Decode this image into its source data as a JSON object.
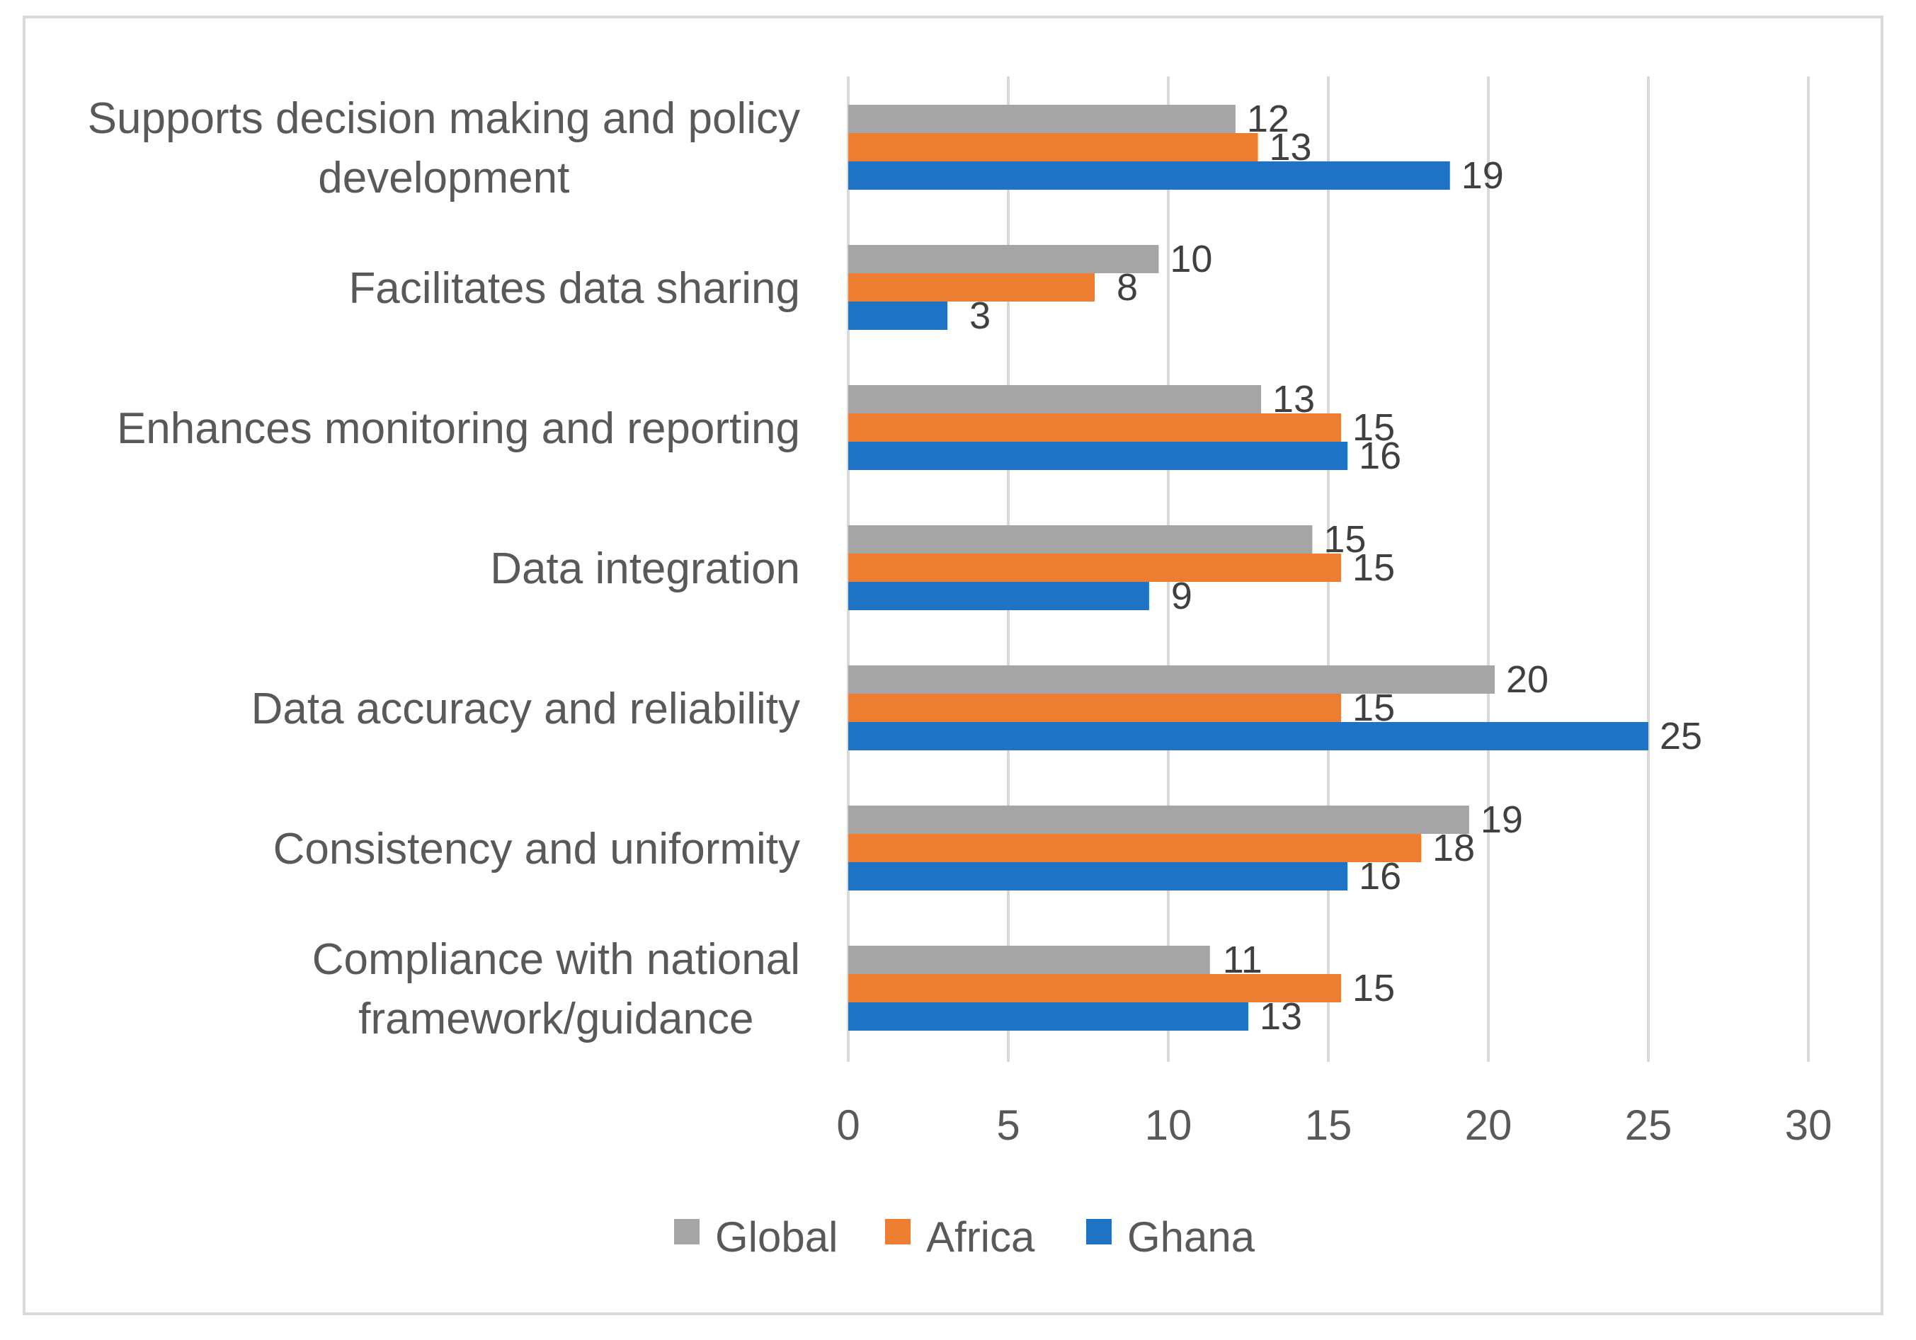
{
  "chart_data": {
    "type": "bar",
    "orientation": "horizontal",
    "title": "",
    "xlabel": "",
    "ylabel": "",
    "xlim": [
      0,
      30
    ],
    "xticks": [
      0,
      5,
      10,
      15,
      20,
      25,
      30
    ],
    "grid": true,
    "legend_position": "bottom",
    "categories": [
      [
        "Supports decision making and policy",
        "development"
      ],
      [
        "Facilitates data sharing"
      ],
      [
        "Enhances monitoring and reporting"
      ],
      [
        "Data integration"
      ],
      [
        "Data accuracy and reliability"
      ],
      [
        "Consistency and uniformity"
      ],
      [
        "Compliance with national",
        "framework/guidance"
      ]
    ],
    "series": [
      {
        "name": "Global",
        "color": "#a5a5a5",
        "values": [
          12.1,
          9.7,
          12.9,
          14.5,
          20.2,
          19.4,
          11.3
        ],
        "labels": [
          "12",
          "10",
          "13",
          "15",
          "20",
          "19",
          "11"
        ]
      },
      {
        "name": "Africa",
        "color": "#ed7d31",
        "values": [
          12.8,
          7.7,
          15.4,
          15.4,
          15.4,
          17.9,
          15.4
        ],
        "labels": [
          "13",
          "8",
          "15",
          "15",
          "15",
          "18",
          "15"
        ]
      },
      {
        "name": "Ghana",
        "color": "#1f73c5",
        "values": [
          18.8,
          3.1,
          15.6,
          9.4,
          25.0,
          15.6,
          12.5
        ],
        "labels": [
          "19",
          "3",
          "16",
          "9",
          "25",
          "16",
          "13"
        ]
      }
    ]
  }
}
